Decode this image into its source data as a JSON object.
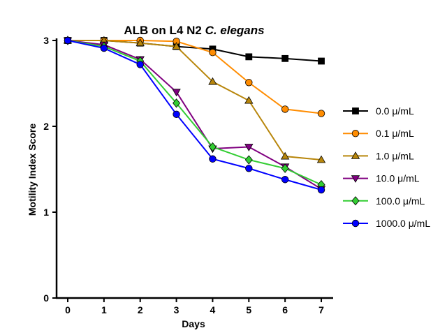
{
  "chart_data": {
    "type": "line",
    "title": {
      "plain": "ALB on L4 N2 ",
      "italic": "C. elegans"
    },
    "xlabel": "Days",
    "ylabel": "Motility Index Score",
    "x": [
      0,
      1,
      2,
      3,
      4,
      5,
      6,
      7
    ],
    "x_ticks": [
      "0",
      "1",
      "2",
      "3",
      "4",
      "5",
      "6",
      "7"
    ],
    "y_ticks": [
      "0",
      "1",
      "2",
      "3"
    ],
    "ylim": [
      0,
      3
    ],
    "xlim": [
      -0.3,
      7.3
    ],
    "legend_position": "right",
    "series": [
      {
        "name": "0.0 μ/mL",
        "color": "#000000",
        "marker": "square",
        "values": [
          3.0,
          3.0,
          2.97,
          2.93,
          2.9,
          2.81,
          2.79,
          2.76
        ]
      },
      {
        "name": "0.1 μ/mL",
        "color": "#ff8c00",
        "marker": "circle",
        "values": [
          3.0,
          3.0,
          3.0,
          2.99,
          2.86,
          2.51,
          2.2,
          2.15
        ]
      },
      {
        "name": "1.0 μ/mL",
        "color": "#b8860b",
        "marker": "triangle-up",
        "values": [
          3.0,
          3.0,
          2.97,
          2.93,
          2.52,
          2.3,
          1.65,
          1.61
        ]
      },
      {
        "name": "10.0 μ/mL",
        "color": "#800080",
        "marker": "triangle-down",
        "values": [
          3.0,
          2.95,
          2.78,
          2.4,
          1.74,
          1.76,
          1.53,
          1.27
        ]
      },
      {
        "name": "100.0 μ/mL",
        "color": "#32cd32",
        "marker": "diamond",
        "values": [
          3.0,
          2.93,
          2.76,
          2.27,
          1.76,
          1.61,
          1.51,
          1.32
        ]
      },
      {
        "name": "1000.0 μ/mL",
        "color": "#0000ff",
        "marker": "circle",
        "values": [
          3.0,
          2.91,
          2.72,
          2.14,
          1.62,
          1.51,
          1.38,
          1.26
        ]
      }
    ]
  }
}
